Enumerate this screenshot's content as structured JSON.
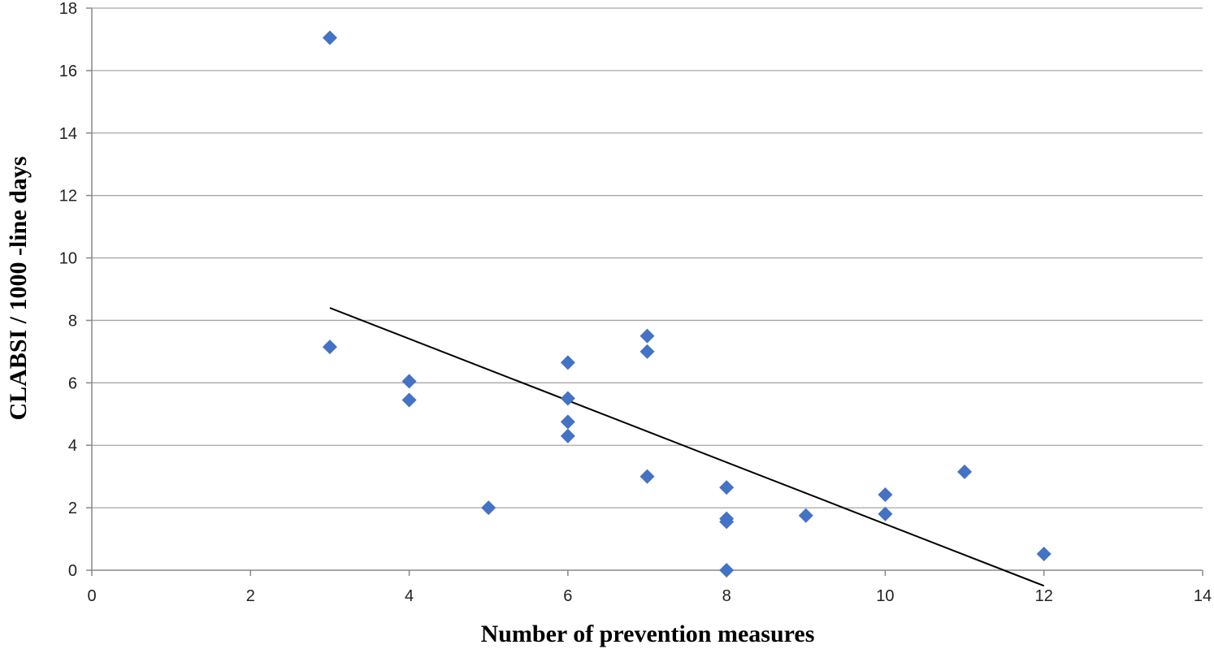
{
  "chart_data": {
    "type": "scatter",
    "title": "",
    "xlabel": "Number of prevention measures",
    "ylabel": "CLABSI / 1000 -line days",
    "xlim": [
      0,
      14
    ],
    "ylim": [
      0,
      18
    ],
    "x_ticks": [
      0,
      2,
      4,
      6,
      8,
      10,
      12,
      14
    ],
    "y_ticks": [
      0,
      2,
      4,
      6,
      8,
      10,
      12,
      14,
      16,
      18
    ],
    "grid": "horizontal",
    "legend": "none",
    "points": [
      {
        "x": 3,
        "y": 17.05
      },
      {
        "x": 3,
        "y": 7.15
      },
      {
        "x": 4,
        "y": 6.05
      },
      {
        "x": 4,
        "y": 5.45
      },
      {
        "x": 5,
        "y": 2.0
      },
      {
        "x": 6,
        "y": 6.65
      },
      {
        "x": 6,
        "y": 5.5
      },
      {
        "x": 6,
        "y": 4.75
      },
      {
        "x": 6,
        "y": 4.3
      },
      {
        "x": 7,
        "y": 7.5
      },
      {
        "x": 7,
        "y": 7.0
      },
      {
        "x": 7,
        "y": 3.0
      },
      {
        "x": 8,
        "y": 2.65
      },
      {
        "x": 8,
        "y": 1.65
      },
      {
        "x": 8,
        "y": 1.55
      },
      {
        "x": 8,
        "y": 0.0
      },
      {
        "x": 9,
        "y": 1.75
      },
      {
        "x": 10,
        "y": 2.42
      },
      {
        "x": 10,
        "y": 1.8
      },
      {
        "x": 11,
        "y": 3.15
      },
      {
        "x": 12,
        "y": 0.52
      }
    ],
    "trendline": {
      "x": [
        3,
        12
      ],
      "y": [
        8.4,
        -0.5
      ]
    },
    "colors": {
      "marker": "#4472C4",
      "trendline": "#000000",
      "grid": "#A6A6A6"
    }
  }
}
